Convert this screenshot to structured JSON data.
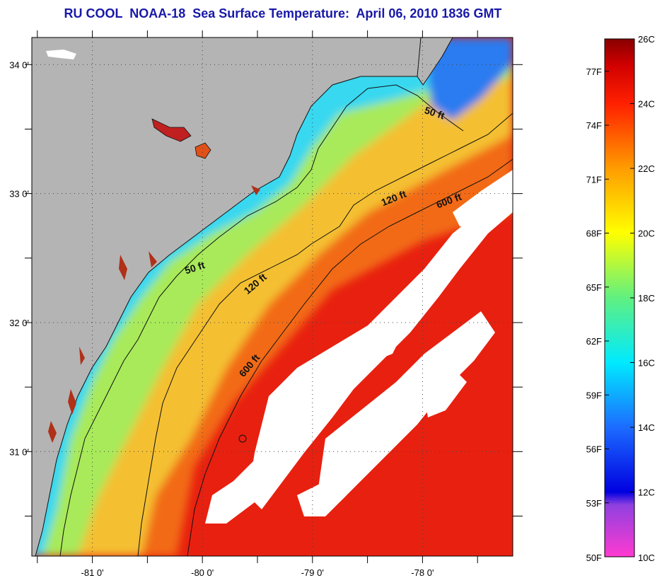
{
  "title": "RU COOL  NOAA-18  Sea Surface Temperature:  April 06, 2010 1836 GMT",
  "map": {
    "lon_range": [
      -81.55,
      -77.18
    ],
    "lat_range": [
      30.19,
      34.21
    ],
    "lon_ticks": [
      {
        "value": -81,
        "label": "-81 0'"
      },
      {
        "value": -80,
        "label": "-80 0'"
      },
      {
        "value": -79,
        "label": "-79 0'"
      },
      {
        "value": -78,
        "label": "-78 0'"
      }
    ],
    "lat_ticks": [
      {
        "value": 34,
        "label": "34 0'"
      },
      {
        "value": 33,
        "label": "33 0'"
      },
      {
        "value": 32,
        "label": "32 0'"
      },
      {
        "value": 31,
        "label": "31 0'"
      }
    ],
    "contour_labels": [
      {
        "text": "50 ft",
        "lon": -77.9,
        "lat": 33.6,
        "angle": 18
      },
      {
        "text": "50 ft",
        "lon": -80.06,
        "lat": 32.4,
        "angle": -18
      },
      {
        "text": "120 ft",
        "lon": -78.25,
        "lat": 32.94,
        "angle": -22
      },
      {
        "text": "120 ft",
        "lon": -79.5,
        "lat": 32.28,
        "angle": -40
      },
      {
        "text": "600 ft",
        "lon": -77.75,
        "lat": 32.92,
        "angle": -20
      },
      {
        "text": "600 ft",
        "lon": -79.55,
        "lat": 31.65,
        "angle": -50
      }
    ],
    "colors": {
      "land": "#b4b4b4",
      "cloud": "#ffffff",
      "ocean_cold": "#30d8f0",
      "ocean_cool": "#9ef06a",
      "ocean_mid": "#f0e040",
      "ocean_warm": "#f07818",
      "ocean_hot": "#e81810"
    }
  },
  "colorbar": {
    "c_labels": [
      "26C",
      "24C",
      "22C",
      "20C",
      "18C",
      "16C",
      "14C",
      "12C",
      "10C"
    ],
    "f_labels": [
      "77F",
      "74F",
      "71F",
      "68F",
      "65F",
      "62F",
      "59F",
      "56F",
      "53F",
      "50F"
    ],
    "c_range": [
      10,
      26
    ],
    "f_range": [
      50,
      78.8
    ],
    "stops": [
      {
        "c": 10,
        "color": "#ff3ad0"
      },
      {
        "c": 11.6,
        "color": "#9040e0"
      },
      {
        "c": 12,
        "color": "#0000e0"
      },
      {
        "c": 14,
        "color": "#1c6cff"
      },
      {
        "c": 16,
        "color": "#00eaff"
      },
      {
        "c": 18,
        "color": "#60f080"
      },
      {
        "c": 20,
        "color": "#ffff00"
      },
      {
        "c": 22,
        "color": "#ff9c00"
      },
      {
        "c": 24,
        "color": "#ff2000"
      },
      {
        "c": 25.2,
        "color": "#d00000"
      },
      {
        "c": 26,
        "color": "#880000"
      }
    ]
  }
}
